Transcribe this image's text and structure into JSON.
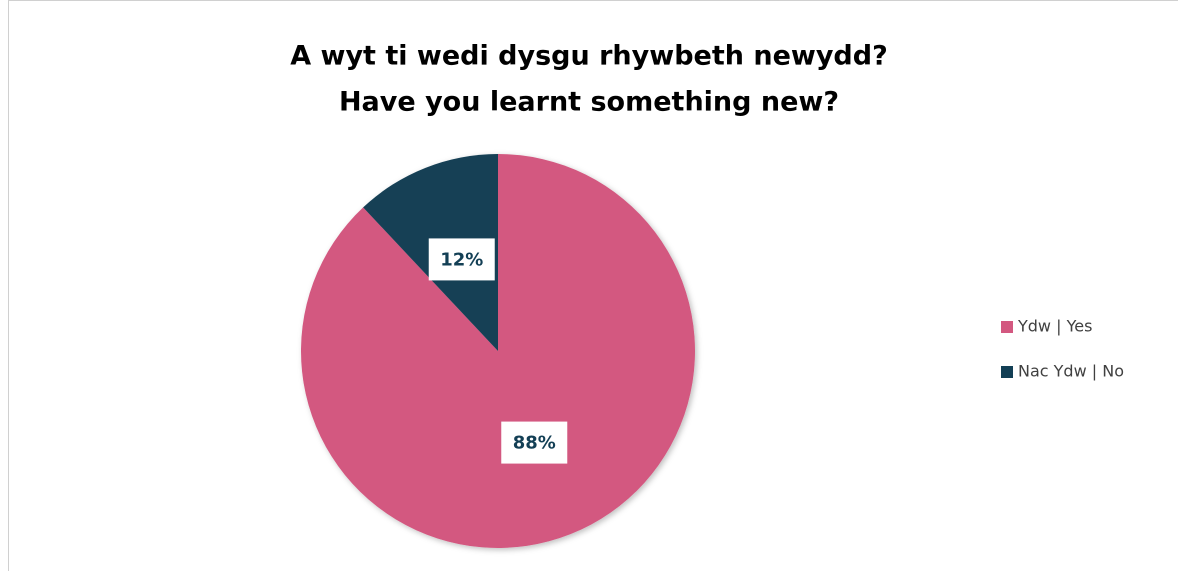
{
  "chart_data": {
    "type": "pie",
    "title": [
      "A wyt ti wedi dysgu rhywbeth newydd?",
      "Have you learnt something new?"
    ],
    "categories": [
      "Ydw | Yes",
      "Nac Ydw | No"
    ],
    "values": [
      88,
      12
    ],
    "value_labels": [
      "88%",
      "12%"
    ],
    "colors": [
      "#d35880",
      "#133f55"
    ],
    "legend": "right"
  }
}
